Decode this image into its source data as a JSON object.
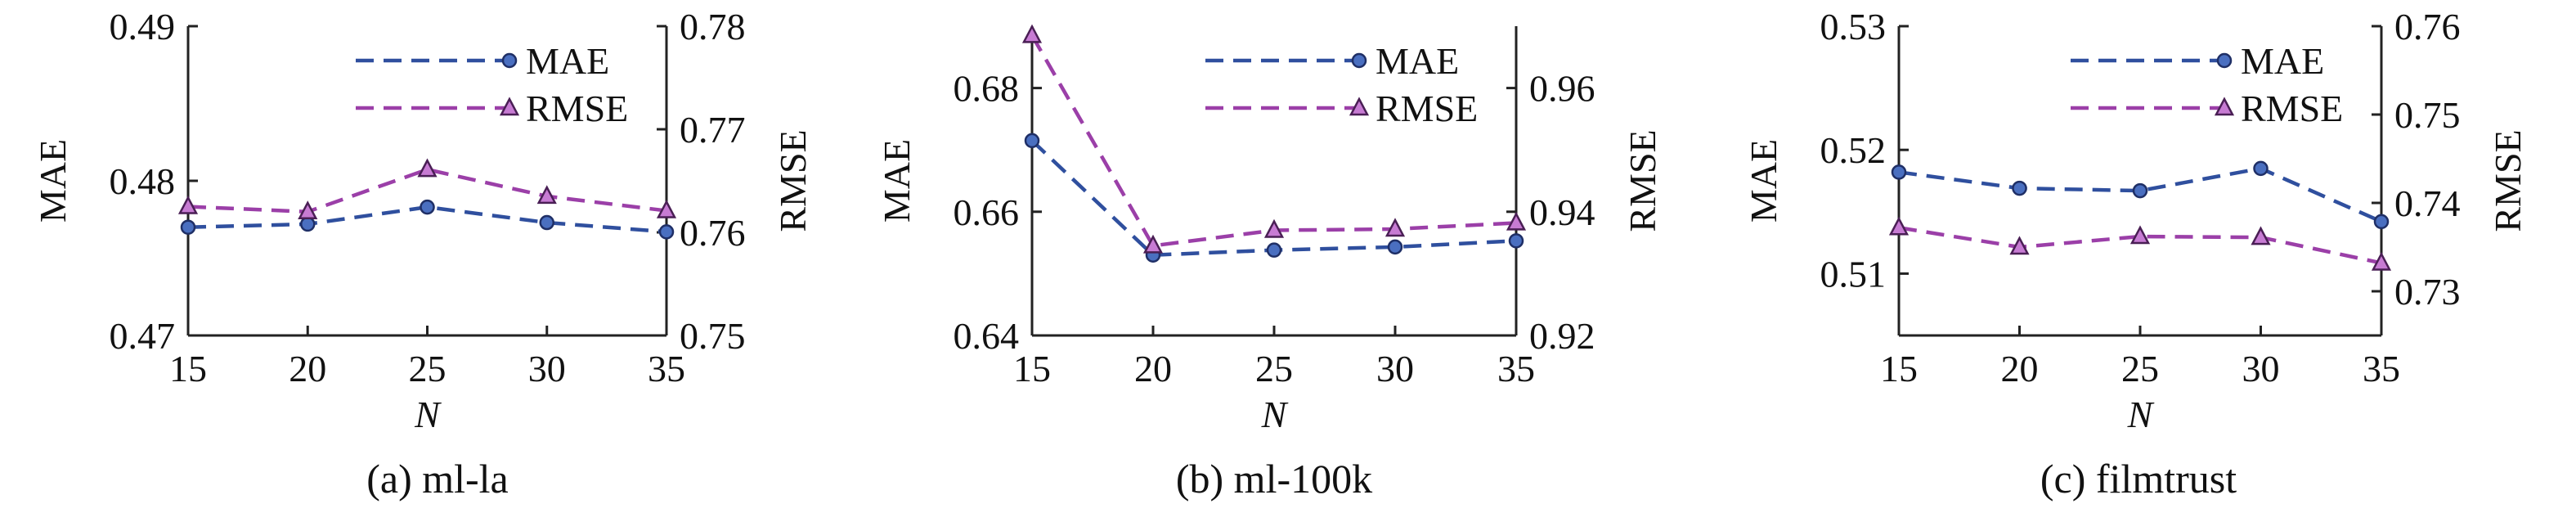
{
  "chart_data": [
    {
      "type": "line",
      "caption": "(a) ml-la",
      "xlabel": "N",
      "ylabel_left": "MAE",
      "ylabel_right": "RMSE",
      "x": [
        15,
        20,
        25,
        30,
        35
      ],
      "ylim_left": [
        0.47,
        0.49
      ],
      "yticks_left": [
        "0.47",
        "0.48",
        "0.49"
      ],
      "ylim_right": [
        0.75,
        0.78
      ],
      "yticks_right": [
        "0.75",
        "0.76",
        "0.77",
        "0.78"
      ],
      "legend_position": "top-right",
      "series": [
        {
          "name": "MAE",
          "axis": "left",
          "color": "#2f4f9e",
          "marker": "circle",
          "values": [
            0.477,
            0.4772,
            0.4783,
            0.4773,
            0.4767
          ]
        },
        {
          "name": "RMSE",
          "axis": "right",
          "color": "#9b3fa8",
          "marker": "triangle",
          "values": [
            0.7625,
            0.762,
            0.7661,
            0.7635,
            0.7621
          ]
        }
      ]
    },
    {
      "type": "line",
      "caption": "(b) ml-100k",
      "xlabel": "N",
      "ylabel_left": "MAE",
      "ylabel_right": "RMSE",
      "x": [
        15,
        20,
        25,
        30,
        35
      ],
      "ylim_left": [
        0.64,
        0.69
      ],
      "yticks_left": [
        "0.64",
        "0.66",
        "0.68"
      ],
      "ylim_right": [
        0.92,
        0.97
      ],
      "yticks_right": [
        "0.92",
        "0.94",
        "0.96"
      ],
      "legend_position": "top-right",
      "series": [
        {
          "name": "MAE",
          "axis": "left",
          "color": "#2f4f9e",
          "marker": "circle",
          "values": [
            0.6715,
            0.653,
            0.6538,
            0.6543,
            0.6553
          ]
        },
        {
          "name": "RMSE",
          "axis": "right",
          "color": "#9b3fa8",
          "marker": "triangle",
          "values": [
            0.9685,
            0.9345,
            0.937,
            0.9372,
            0.9382
          ]
        }
      ]
    },
    {
      "type": "line",
      "caption": "(c) filmtrust",
      "xlabel": "N",
      "ylabel_left": "MAE",
      "ylabel_right": "RMSE",
      "x": [
        15,
        20,
        25,
        30,
        35
      ],
      "ylim_left": [
        0.505,
        0.53
      ],
      "yticks_left": [
        "0.51",
        "0.52",
        "0.53"
      ],
      "ylim_right": [
        0.725,
        0.76
      ],
      "yticks_right": [
        "0.73",
        "0.74",
        "0.75",
        "0.76"
      ],
      "legend_position": "top-right",
      "series": [
        {
          "name": "MAE",
          "axis": "left",
          "color": "#2f4f9e",
          "marker": "circle",
          "values": [
            0.5182,
            0.5169,
            0.5167,
            0.5185,
            0.5142
          ]
        },
        {
          "name": "RMSE",
          "axis": "right",
          "color": "#9b3fa8",
          "marker": "triangle",
          "values": [
            0.7372,
            0.735,
            0.7362,
            0.7361,
            0.7332
          ]
        }
      ]
    }
  ]
}
